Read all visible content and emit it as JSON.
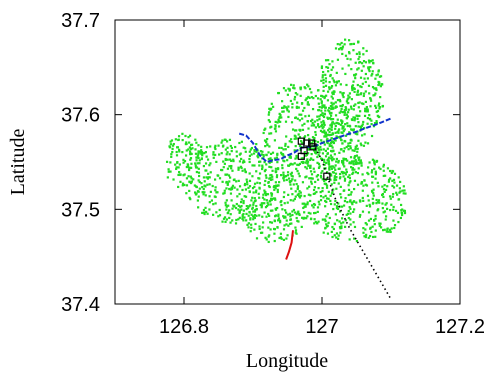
{
  "chart_data": {
    "type": "scatter",
    "xlabel": "Longitude",
    "ylabel": "Latitude",
    "xlim": [
      126.7,
      127.2
    ],
    "ylim": [
      37.4,
      37.7
    ],
    "x_ticks": [
      {
        "value": 126.8,
        "label": "126.8"
      },
      {
        "value": 127.0,
        "label": "127"
      },
      {
        "value": 127.2,
        "label": "127.2"
      }
    ],
    "y_ticks": [
      {
        "value": 37.4,
        "label": "37.4"
      },
      {
        "value": 37.5,
        "label": "37.5"
      },
      {
        "value": 37.6,
        "label": "37.6"
      },
      {
        "value": 37.7,
        "label": "37.7"
      }
    ],
    "grid": false,
    "legend": "none",
    "colors": {
      "network": "#22dd22",
      "blue_route": "#1133cc",
      "red_route": "#dd1111",
      "dotted_route": "#000000",
      "markers": "#000000"
    },
    "series": [
      {
        "mark": "dashed-line",
        "color": "#1133cc",
        "points": [
          [
            126.88,
            37.58
          ],
          [
            126.89,
            37.578
          ],
          [
            126.9,
            37.57
          ],
          [
            126.91,
            37.557
          ],
          [
            126.92,
            37.55
          ],
          [
            126.93,
            37.552
          ],
          [
            126.94,
            37.553
          ],
          [
            126.95,
            37.557
          ],
          [
            126.96,
            37.56
          ],
          [
            126.97,
            37.565
          ],
          [
            126.98,
            37.566
          ],
          [
            126.99,
            37.567
          ],
          [
            127.0,
            37.57
          ],
          [
            127.02,
            37.575
          ],
          [
            127.04,
            37.58
          ],
          [
            127.05,
            37.582
          ],
          [
            127.06,
            37.585
          ],
          [
            127.08,
            37.59
          ],
          [
            127.1,
            37.596
          ]
        ]
      },
      {
        "mark": "solid-line",
        "color": "#dd1111",
        "points": [
          [
            126.958,
            37.478
          ],
          [
            126.956,
            37.465
          ],
          [
            126.952,
            37.455
          ],
          [
            126.948,
            37.447
          ]
        ]
      },
      {
        "mark": "dotted-line",
        "color": "#000000",
        "points": [
          [
            126.99,
            37.565
          ],
          [
            127.0,
            37.552
          ],
          [
            127.01,
            37.53
          ],
          [
            127.02,
            37.51
          ],
          [
            127.04,
            37.48
          ],
          [
            127.06,
            37.455
          ],
          [
            127.08,
            37.43
          ],
          [
            127.1,
            37.405
          ]
        ]
      },
      {
        "mark": "square-markers",
        "color": "#000000",
        "points": [
          [
            126.97,
            37.572
          ],
          [
            126.978,
            37.57
          ],
          [
            126.985,
            37.57
          ],
          [
            126.987,
            37.566
          ],
          [
            126.974,
            37.562
          ],
          [
            126.97,
            37.556
          ],
          [
            127.007,
            37.535
          ]
        ]
      }
    ],
    "network_lobes": [
      {
        "x": 126.97,
        "y": 37.58,
        "rx": 0.055,
        "ry": 0.055
      },
      {
        "x": 127.04,
        "y": 37.62,
        "rx": 0.05,
        "ry": 0.06
      },
      {
        "x": 126.87,
        "y": 37.53,
        "rx": 0.07,
        "ry": 0.045
      },
      {
        "x": 126.93,
        "y": 37.5,
        "rx": 0.05,
        "ry": 0.035
      },
      {
        "x": 127.05,
        "y": 37.51,
        "rx": 0.075,
        "ry": 0.045
      },
      {
        "x": 127.02,
        "y": 37.57,
        "rx": 0.04,
        "ry": 0.04
      },
      {
        "x": 126.8,
        "y": 37.55,
        "rx": 0.03,
        "ry": 0.03
      }
    ]
  }
}
